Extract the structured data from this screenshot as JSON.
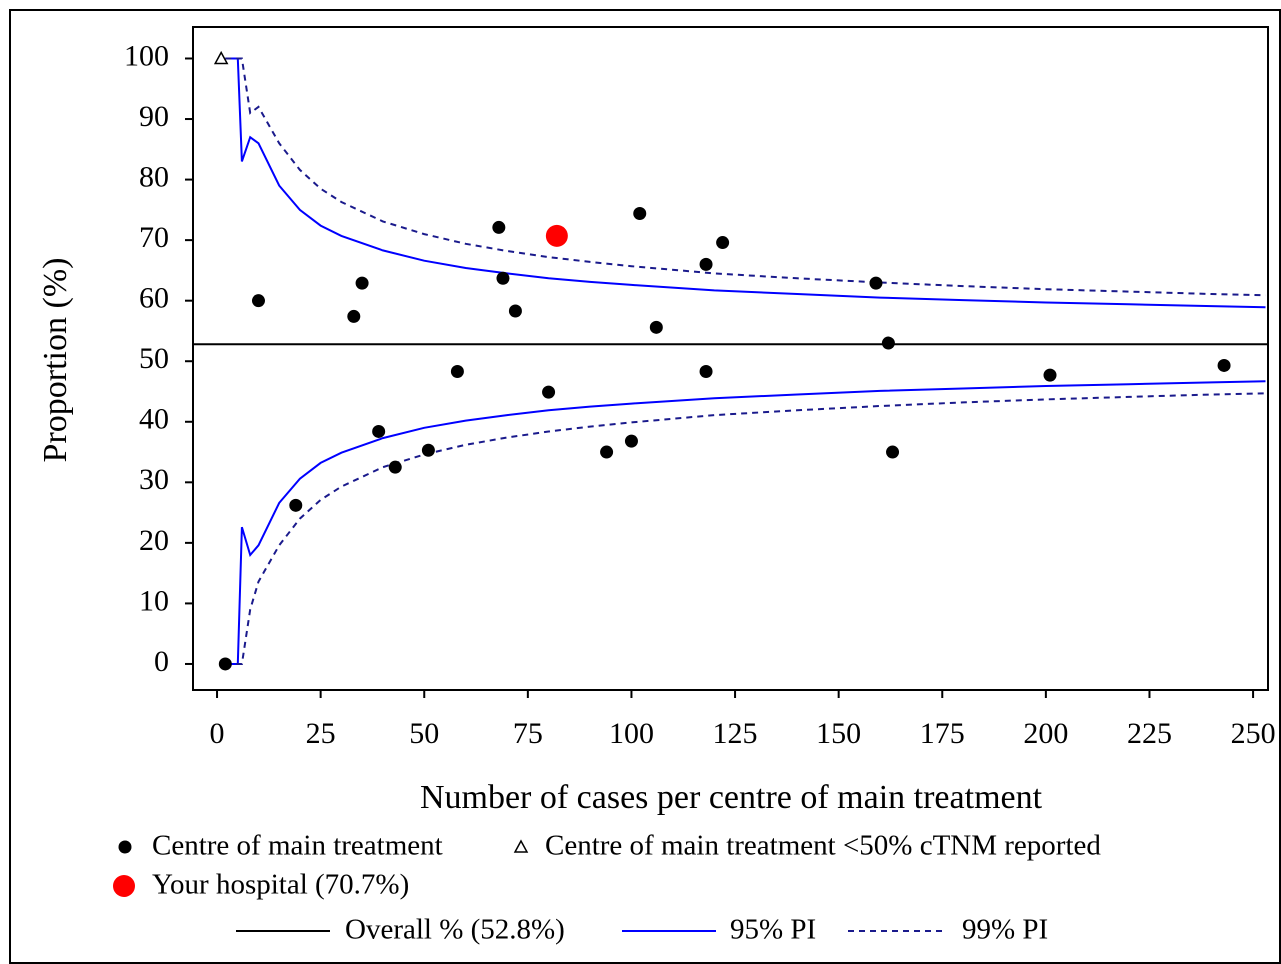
{
  "chart_data": {
    "type": "funnel",
    "x_label": "Number of cases per centre of main treatment",
    "y_label": "Proportion (%)",
    "xlim": [
      -5.8,
      253.6
    ],
    "ylim": [
      -4.3,
      105.2
    ],
    "xticks": [
      0,
      25,
      50,
      75,
      100,
      125,
      150,
      175,
      200,
      225,
      250
    ],
    "yticks": [
      0,
      10,
      20,
      30,
      40,
      50,
      60,
      70,
      80,
      90,
      100
    ],
    "points": [
      {
        "name": "Centre of main treatment",
        "marker": "circle",
        "color": "#000000",
        "x": [
          10,
          2,
          19,
          33,
          35,
          39,
          43,
          51,
          58,
          68,
          69,
          72,
          80,
          94,
          100,
          102,
          106,
          118,
          118,
          122,
          159,
          162,
          163,
          201,
          243
        ],
        "values": [
          60,
          0,
          26.2,
          57.4,
          62.9,
          38.4,
          32.5,
          35.3,
          48.3,
          72.1,
          63.7,
          58.3,
          44.9,
          35,
          36.8,
          74.4,
          55.6,
          66,
          48.3,
          69.6,
          62.9,
          53,
          35,
          47.7,
          49.3
        ]
      },
      {
        "name": "Centre of main treatment <50% cTNM reported",
        "marker": "triangle",
        "color": "#000000",
        "x": [
          1
        ],
        "values": [
          100
        ]
      },
      {
        "name": "Your hospital (70.7%)",
        "marker": "big-circle",
        "color": "#ff0000",
        "x": [
          82
        ],
        "values": [
          70.7
        ]
      }
    ],
    "overall": {
      "name": "Overall % (52.8%)",
      "value": 52.8,
      "color": "#000000"
    },
    "band_x": [
      2,
      5,
      6,
      8,
      10,
      15,
      20,
      25,
      30,
      40,
      50,
      60,
      70,
      80,
      90,
      100,
      120,
      140,
      160,
      180,
      200,
      220,
      240,
      253
    ],
    "bands": [
      {
        "name": "95% PI",
        "color": "#0000ff",
        "dashed": false,
        "upper": [
          100,
          100,
          83,
          87,
          86,
          79,
          75,
          72.4,
          70.7,
          68.3,
          66.6,
          65.4,
          64.5,
          63.7,
          63.1,
          62.6,
          61.7,
          61.1,
          60.5,
          60.1,
          59.7,
          59.4,
          59.1,
          58.9
        ],
        "lower": [
          0,
          0,
          22.6,
          18,
          19.6,
          26.6,
          30.6,
          33.2,
          34.9,
          37.3,
          39,
          40.2,
          41.1,
          41.9,
          42.5,
          43,
          43.9,
          44.5,
          45.1,
          45.5,
          45.9,
          46.2,
          46.5,
          46.7
        ]
      },
      {
        "name": "99% PI",
        "color": "#1a1a8c",
        "dashed": true,
        "upper": [
          100,
          100,
          100,
          91,
          92,
          86,
          81.6,
          78.5,
          76.3,
          73.1,
          71,
          69.4,
          68.2,
          67.2,
          66.4,
          65.7,
          64.5,
          63.7,
          63,
          62.4,
          61.9,
          61.5,
          61.1,
          60.9
        ],
        "lower": [
          0,
          0,
          0,
          9,
          13.6,
          19.6,
          24,
          27.1,
          29.3,
          32.5,
          34.6,
          36.2,
          37.4,
          38.4,
          39.2,
          39.9,
          41.1,
          41.9,
          42.6,
          43.2,
          43.7,
          44.1,
          44.5,
          44.7
        ]
      }
    ]
  }
}
